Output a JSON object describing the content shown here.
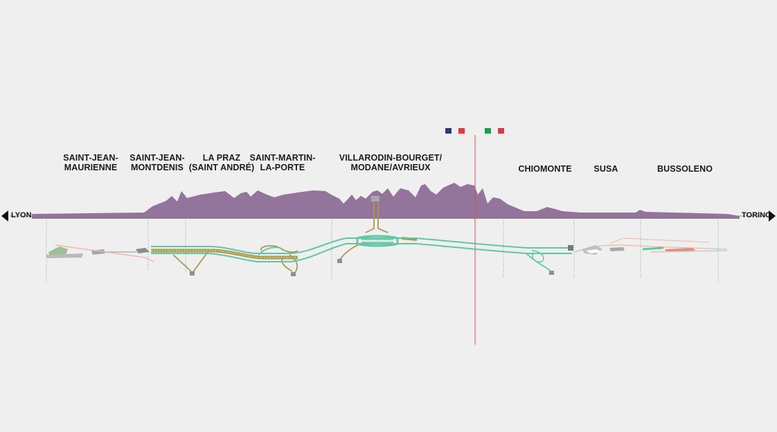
{
  "endpoints": {
    "left": "LYON",
    "right": "TORINO"
  },
  "stations": [
    {
      "id": "saint-jean-maurienne",
      "line1": "SAINT-JEAN-",
      "line2": "MAURIENNE"
    },
    {
      "id": "saint-jean-montdenis",
      "line1": "SAINT-JEAN-",
      "line2": "MONTDENIS"
    },
    {
      "id": "la-praz",
      "line1": "LA PRAZ",
      "line2": "(SAINT ANDRÉ)"
    },
    {
      "id": "saint-martin-la-porte",
      "line1": "SAINT-MARTIN-",
      "line2": "LA-PORTE"
    },
    {
      "id": "villarodin-bourget",
      "line1": "VILLARODIN-BOURGET/",
      "line2": "MODANE/AVRIEUX"
    },
    {
      "id": "chiomonte",
      "line1": "CHIOMONTE",
      "line2": ""
    },
    {
      "id": "susa",
      "line1": "SUSA",
      "line2": ""
    },
    {
      "id": "bussoleno",
      "line1": "BUSSOLENO",
      "line2": ""
    }
  ],
  "colors": {
    "background": "#efefef",
    "mountain": "#93749b",
    "tunnel_green": "#5fc7a3",
    "tunnel_olive": "#a89a4e",
    "border_line": "#d9534f",
    "flag_france_blue": "#2b3a78",
    "flag_france_red": "#e0383f",
    "flag_italy_green": "#1f9a55",
    "flag_italy_red": "#e0383f",
    "guide_line": "#7fbf9c"
  },
  "icons": {
    "left_arrow": "arrow-left-icon",
    "right_arrow": "arrow-right-icon",
    "france_flag": "france-flag-icon",
    "italy_flag": "italy-flag-icon"
  }
}
